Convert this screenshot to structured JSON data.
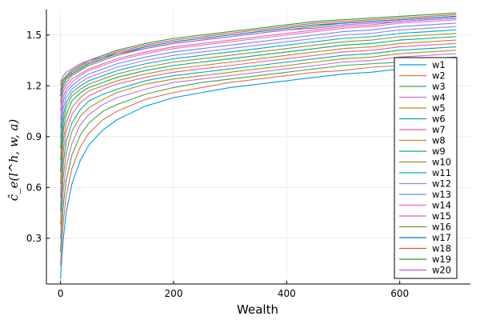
{
  "chart_data": {
    "type": "line",
    "title": "",
    "xlabel": "Wealth",
    "ylabel": "ĉ_e(l^h, w, a)",
    "xlim": [
      -25,
      725
    ],
    "ylim": [
      0.03,
      1.65
    ],
    "xticks": [
      0,
      200,
      400,
      600
    ],
    "xtick_labels": [
      "0",
      "200",
      "400",
      "600"
    ],
    "yticks": [
      0.3,
      0.6,
      0.9,
      1.2,
      1.5
    ],
    "ytick_labels": [
      "0.3",
      "0.6",
      "0.9",
      "1.2",
      "1.5"
    ],
    "grid": true,
    "legend_position": "right",
    "x": [
      0,
      2,
      5,
      10,
      20,
      35,
      50,
      75,
      100,
      150,
      200,
      250,
      300,
      350,
      400,
      450,
      500,
      550,
      600,
      650,
      700
    ],
    "series": [
      {
        "name": "w1",
        "color": "#009AFA",
        "values": [
          0.06,
          0.17,
          0.3,
          0.45,
          0.62,
          0.76,
          0.85,
          0.94,
          1.0,
          1.08,
          1.13,
          1.16,
          1.19,
          1.21,
          1.23,
          1.25,
          1.27,
          1.28,
          1.3,
          1.31,
          1.32
        ]
      },
      {
        "name": "w2",
        "color": "#E36F47",
        "values": [
          0.14,
          0.26,
          0.4,
          0.55,
          0.71,
          0.84,
          0.92,
          1.0,
          1.05,
          1.12,
          1.16,
          1.19,
          1.22,
          1.24,
          1.26,
          1.28,
          1.29,
          1.31,
          1.32,
          1.33,
          1.35
        ]
      },
      {
        "name": "w3",
        "color": "#3EA44E",
        "values": [
          0.22,
          0.35,
          0.5,
          0.64,
          0.79,
          0.91,
          0.98,
          1.05,
          1.09,
          1.15,
          1.19,
          1.22,
          1.24,
          1.26,
          1.28,
          1.3,
          1.32,
          1.33,
          1.34,
          1.36,
          1.37
        ]
      },
      {
        "name": "w4",
        "color": "#C371D2",
        "values": [
          0.3,
          0.44,
          0.59,
          0.72,
          0.86,
          0.97,
          1.03,
          1.09,
          1.13,
          1.18,
          1.22,
          1.24,
          1.26,
          1.28,
          1.3,
          1.32,
          1.34,
          1.35,
          1.37,
          1.38,
          1.39
        ]
      },
      {
        "name": "w5",
        "color": "#AC8E18",
        "values": [
          0.38,
          0.52,
          0.67,
          0.8,
          0.93,
          1.02,
          1.07,
          1.12,
          1.16,
          1.21,
          1.24,
          1.26,
          1.28,
          1.3,
          1.32,
          1.34,
          1.36,
          1.37,
          1.39,
          1.4,
          1.41
        ]
      },
      {
        "name": "w6",
        "color": "#00AAAE",
        "values": [
          0.46,
          0.6,
          0.75,
          0.87,
          0.98,
          1.06,
          1.11,
          1.15,
          1.18,
          1.23,
          1.26,
          1.28,
          1.3,
          1.32,
          1.34,
          1.36,
          1.38,
          1.39,
          1.41,
          1.42,
          1.43
        ]
      },
      {
        "name": "w7",
        "color": "#ED5D92",
        "values": [
          0.54,
          0.68,
          0.82,
          0.93,
          1.03,
          1.1,
          1.14,
          1.18,
          1.21,
          1.25,
          1.28,
          1.3,
          1.32,
          1.34,
          1.36,
          1.38,
          1.4,
          1.41,
          1.43,
          1.44,
          1.45
        ]
      },
      {
        "name": "w8",
        "color": "#C68225",
        "values": [
          0.62,
          0.75,
          0.88,
          0.98,
          1.07,
          1.13,
          1.17,
          1.2,
          1.23,
          1.27,
          1.3,
          1.32,
          1.34,
          1.36,
          1.38,
          1.4,
          1.42,
          1.43,
          1.45,
          1.46,
          1.47
        ]
      },
      {
        "name": "w9",
        "color": "#00A98D",
        "values": [
          0.69,
          0.82,
          0.94,
          1.03,
          1.11,
          1.16,
          1.19,
          1.22,
          1.25,
          1.29,
          1.32,
          1.34,
          1.36,
          1.38,
          1.4,
          1.42,
          1.44,
          1.45,
          1.47,
          1.48,
          1.49
        ]
      },
      {
        "name": "w10",
        "color": "#8E971D",
        "values": [
          0.76,
          0.88,
          0.99,
          1.07,
          1.14,
          1.18,
          1.21,
          1.24,
          1.27,
          1.31,
          1.34,
          1.36,
          1.38,
          1.4,
          1.42,
          1.44,
          1.46,
          1.47,
          1.49,
          1.5,
          1.51
        ]
      },
      {
        "name": "w11",
        "color": "#00A9CD",
        "values": [
          0.83,
          0.94,
          1.03,
          1.1,
          1.16,
          1.2,
          1.23,
          1.26,
          1.29,
          1.33,
          1.36,
          1.38,
          1.4,
          1.42,
          1.44,
          1.46,
          1.48,
          1.49,
          1.51,
          1.52,
          1.53
        ]
      },
      {
        "name": "w12",
        "color": "#9B7FE9",
        "values": [
          0.89,
          0.99,
          1.07,
          1.13,
          1.18,
          1.22,
          1.25,
          1.28,
          1.31,
          1.35,
          1.38,
          1.4,
          1.42,
          1.44,
          1.46,
          1.48,
          1.5,
          1.51,
          1.53,
          1.54,
          1.55
        ]
      },
      {
        "name": "w13",
        "color": "#618DF6",
        "values": [
          0.95,
          1.04,
          1.11,
          1.16,
          1.2,
          1.24,
          1.27,
          1.3,
          1.33,
          1.37,
          1.4,
          1.42,
          1.44,
          1.46,
          1.48,
          1.5,
          1.52,
          1.53,
          1.55,
          1.56,
          1.57
        ]
      },
      {
        "name": "w14",
        "color": "#F16BC0",
        "values": [
          1.0,
          1.08,
          1.14,
          1.18,
          1.22,
          1.26,
          1.29,
          1.32,
          1.35,
          1.39,
          1.42,
          1.44,
          1.46,
          1.48,
          1.5,
          1.52,
          1.54,
          1.55,
          1.57,
          1.58,
          1.59
        ]
      },
      {
        "name": "w15",
        "color": "#DD64B5",
        "values": [
          1.05,
          1.12,
          1.17,
          1.2,
          1.24,
          1.27,
          1.3,
          1.33,
          1.36,
          1.4,
          1.43,
          1.45,
          1.47,
          1.49,
          1.51,
          1.53,
          1.55,
          1.56,
          1.58,
          1.59,
          1.6
        ]
      },
      {
        "name": "w16",
        "color": "#6B9C2D",
        "values": [
          1.1,
          1.15,
          1.19,
          1.22,
          1.26,
          1.29,
          1.32,
          1.35,
          1.38,
          1.42,
          1.45,
          1.47,
          1.49,
          1.51,
          1.53,
          1.55,
          1.57,
          1.58,
          1.59,
          1.6,
          1.61
        ]
      },
      {
        "name": "w17",
        "color": "#0077C8",
        "values": [
          1.14,
          1.18,
          1.21,
          1.24,
          1.27,
          1.3,
          1.33,
          1.36,
          1.39,
          1.43,
          1.46,
          1.48,
          1.5,
          1.52,
          1.54,
          1.56,
          1.57,
          1.58,
          1.59,
          1.6,
          1.61
        ]
      },
      {
        "name": "w18",
        "color": "#DE5530",
        "values": [
          1.17,
          1.2,
          1.23,
          1.25,
          1.28,
          1.31,
          1.34,
          1.37,
          1.4,
          1.44,
          1.47,
          1.49,
          1.51,
          1.53,
          1.55,
          1.57,
          1.58,
          1.59,
          1.6,
          1.61,
          1.62
        ]
      },
      {
        "name": "w19",
        "color": "#2B9A3A",
        "values": [
          1.2,
          1.22,
          1.24,
          1.26,
          1.29,
          1.32,
          1.35,
          1.38,
          1.41,
          1.45,
          1.48,
          1.5,
          1.52,
          1.54,
          1.56,
          1.58,
          1.59,
          1.6,
          1.61,
          1.62,
          1.63
        ]
      },
      {
        "name": "w20",
        "color": "#B95BE0",
        "values": [
          1.22,
          1.24,
          1.26,
          1.28,
          1.3,
          1.33,
          1.35,
          1.37,
          1.39,
          1.42,
          1.45,
          1.47,
          1.49,
          1.51,
          1.53,
          1.54,
          1.56,
          1.57,
          1.58,
          1.59,
          1.6
        ]
      }
    ]
  }
}
